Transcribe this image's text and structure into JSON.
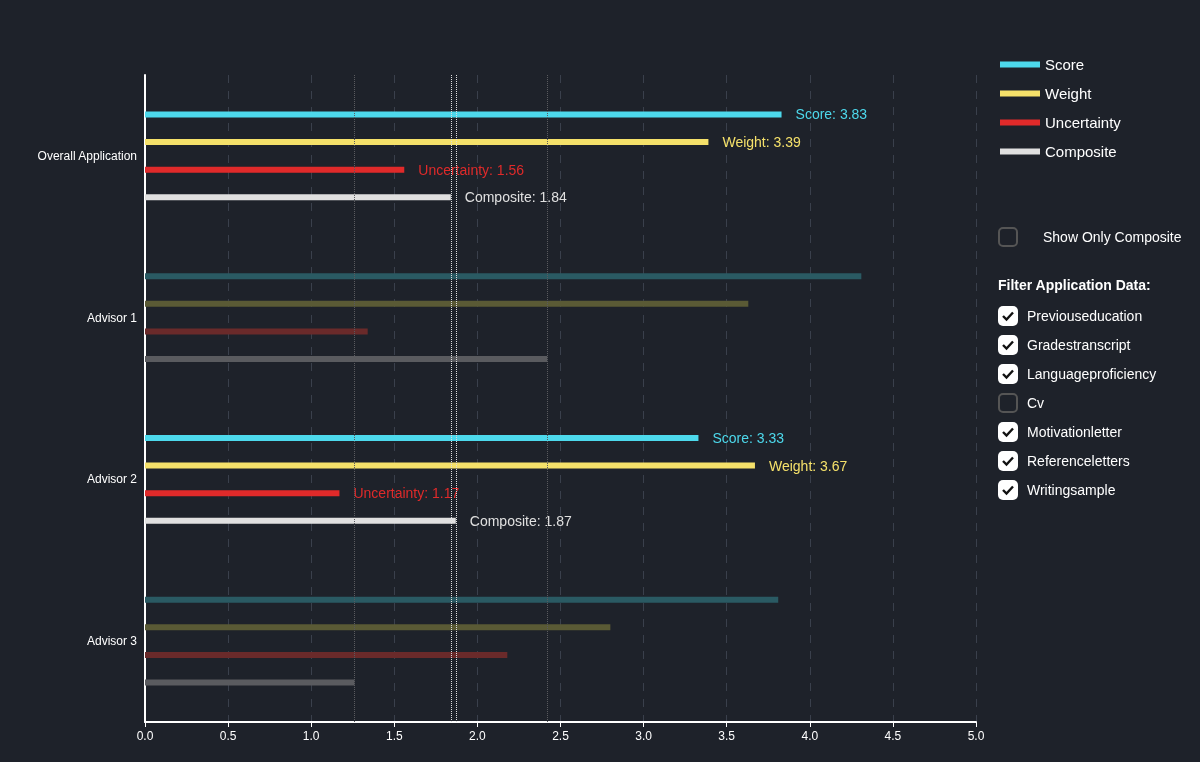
{
  "chart_data": {
    "type": "bar",
    "orientation": "horizontal",
    "categories": [
      "Overall Application",
      "Advisor 1",
      "Advisor 2",
      "Advisor 3"
    ],
    "series": [
      {
        "name": "Score",
        "color": "#4dd9ec",
        "colors": [
          "#4dd9ec",
          "#2a5a63",
          "#4dd9ec",
          "#2a5a63"
        ],
        "values": [
          3.83,
          4.31,
          3.33,
          3.81
        ],
        "value_labels": [
          "Score: 3.83",
          null,
          "Score: 3.33",
          null
        ]
      },
      {
        "name": "Weight",
        "color": "#f5e16a",
        "colors": [
          "#f5e16a",
          "#5a5a35",
          "#f5e16a",
          "#5a5a35"
        ],
        "values": [
          3.39,
          3.63,
          3.67,
          2.8
        ],
        "value_labels": [
          "Weight: 3.39",
          null,
          "Weight: 3.67",
          null
        ]
      },
      {
        "name": "Uncertainty",
        "color": "#e02a2a",
        "colors": [
          "#e02a2a",
          "#6a2a2a",
          "#e02a2a",
          "#6a2a2a"
        ],
        "values": [
          1.56,
          1.34,
          1.17,
          2.18
        ],
        "value_labels": [
          "Uncertainty: 1.56",
          null,
          "Uncertainty: 1.17",
          null
        ]
      },
      {
        "name": "Composite",
        "color": "#e0e0e0",
        "colors": [
          "#e0e0e0",
          "#5a5b5f",
          "#e0e0e0",
          "#5a5b5f"
        ],
        "values": [
          1.84,
          2.42,
          1.87,
          1.26
        ],
        "value_labels": [
          "Composite: 1.84",
          null,
          "Composite: 1.87",
          null
        ]
      }
    ],
    "xlim": [
      0,
      5
    ],
    "xticks": [
      {
        "value": 0,
        "label": "0.0"
      },
      0.5,
      {
        "value": 1,
        "label": "1.0"
      },
      1.5,
      {
        "value": 2,
        "label": "2.0"
      },
      2.5,
      {
        "value": 3,
        "label": "3.0"
      },
      3.5,
      {
        "value": 4,
        "label": "4.0"
      },
      4.5,
      {
        "value": 5,
        "label": "5.0"
      }
    ],
    "ref_lines": [
      {
        "axis": "x",
        "value": 1.84,
        "color": "#e0e0e0",
        "line_style": "dotted"
      },
      {
        "axis": "x",
        "value": 1.87,
        "color": "#e0e0e0",
        "line_style": "dotted"
      },
      {
        "axis": "x",
        "value": 2.42,
        "color": "#5a5b5f",
        "line_style": "dotted"
      },
      {
        "axis": "x",
        "value": 1.26,
        "color": "#5a5b5f",
        "line_style": "dotted"
      }
    ],
    "grid": "x",
    "legend": "top right",
    "annotations": [
      "Show Only Composite",
      "Filter Application Data:",
      "Previouseducation",
      "Gradestranscript",
      "Languageproficiency",
      "Cv",
      "Motivationletter",
      "Referenceletters",
      "Writingsample"
    ]
  }
}
